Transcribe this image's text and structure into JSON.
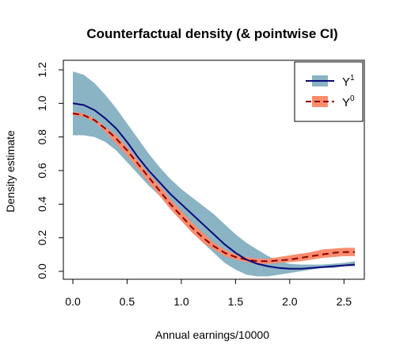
{
  "chart_data": {
    "type": "line",
    "title": "Counterfactual density (& pointwise CI)",
    "xlabel": "Annual earnings/10000",
    "ylabel": "Density estimate",
    "xlim": [
      0,
      2.6
    ],
    "ylim": [
      0,
      1.2
    ],
    "xticks": [
      "0.0",
      "0.5",
      "1.0",
      "1.5",
      "2.0",
      "2.5"
    ],
    "yticks": [
      "0.0",
      "0.2",
      "0.4",
      "0.6",
      "0.8",
      "1.0",
      "1.2"
    ],
    "grid": false,
    "legend_position": "top-right",
    "legend": [
      {
        "base": "Y",
        "sup": "1",
        "line_color": "#0a0a7a",
        "band_color": "#8ab3c4",
        "dash": "solid"
      },
      {
        "base": "Y",
        "sup": "0",
        "line_color": "#8b0000",
        "band_color": "#fa8c6e",
        "dash": "dashed"
      }
    ],
    "series": [
      {
        "key": "Y1",
        "x": [
          0.0,
          0.1,
          0.2,
          0.3,
          0.4,
          0.5,
          0.6,
          0.7,
          0.8,
          0.9,
          1.0,
          1.1,
          1.2,
          1.3,
          1.4,
          1.5,
          1.6,
          1.7,
          1.8,
          1.9,
          2.0,
          2.1,
          2.2,
          2.3,
          2.4,
          2.5,
          2.6
        ],
        "y": [
          1.0,
          0.99,
          0.96,
          0.91,
          0.85,
          0.77,
          0.68,
          0.6,
          0.53,
          0.46,
          0.4,
          0.34,
          0.28,
          0.22,
          0.16,
          0.11,
          0.07,
          0.045,
          0.03,
          0.02,
          0.015,
          0.015,
          0.02,
          0.025,
          0.03,
          0.035,
          0.04
        ],
        "lower": [
          0.81,
          0.81,
          0.8,
          0.77,
          0.72,
          0.65,
          0.58,
          0.51,
          0.45,
          0.38,
          0.31,
          0.24,
          0.17,
          0.11,
          0.05,
          0.01,
          -0.02,
          -0.03,
          -0.03,
          -0.02,
          -0.01,
          0.0,
          0.01,
          0.02,
          0.02,
          0.03,
          0.03
        ],
        "upper": [
          1.19,
          1.17,
          1.12,
          1.05,
          0.97,
          0.88,
          0.79,
          0.7,
          0.62,
          0.55,
          0.49,
          0.44,
          0.39,
          0.34,
          0.28,
          0.22,
          0.17,
          0.13,
          0.09,
          0.06,
          0.045,
          0.04,
          0.04,
          0.04,
          0.045,
          0.05,
          0.06
        ],
        "line_color": "#0a0a7a",
        "band_color": "#8ab3c4",
        "dash": "solid"
      },
      {
        "key": "Y0",
        "x": [
          0.0,
          0.1,
          0.2,
          0.3,
          0.4,
          0.5,
          0.6,
          0.7,
          0.8,
          0.9,
          1.0,
          1.1,
          1.2,
          1.3,
          1.4,
          1.5,
          1.6,
          1.7,
          1.8,
          1.9,
          2.0,
          2.1,
          2.2,
          2.3,
          2.4,
          2.5,
          2.6
        ],
        "y": [
          0.94,
          0.93,
          0.9,
          0.85,
          0.79,
          0.72,
          0.64,
          0.56,
          0.48,
          0.4,
          0.33,
          0.26,
          0.2,
          0.15,
          0.11,
          0.085,
          0.07,
          0.06,
          0.06,
          0.065,
          0.07,
          0.08,
          0.09,
          0.1,
          0.11,
          0.115,
          0.115
        ],
        "lower": [
          0.93,
          0.92,
          0.89,
          0.83,
          0.76,
          0.69,
          0.61,
          0.53,
          0.45,
          0.37,
          0.3,
          0.23,
          0.17,
          0.13,
          0.09,
          0.07,
          0.055,
          0.045,
          0.045,
          0.05,
          0.055,
          0.06,
          0.07,
          0.08,
          0.085,
          0.09,
          0.09
        ],
        "upper": [
          0.95,
          0.94,
          0.91,
          0.86,
          0.81,
          0.74,
          0.66,
          0.58,
          0.51,
          0.43,
          0.36,
          0.29,
          0.23,
          0.17,
          0.13,
          0.1,
          0.085,
          0.075,
          0.075,
          0.085,
          0.095,
          0.105,
          0.115,
          0.13,
          0.135,
          0.14,
          0.14
        ],
        "line_color": "#8b0000",
        "band_color": "#fa8c6e",
        "dash": "dashed"
      }
    ]
  }
}
